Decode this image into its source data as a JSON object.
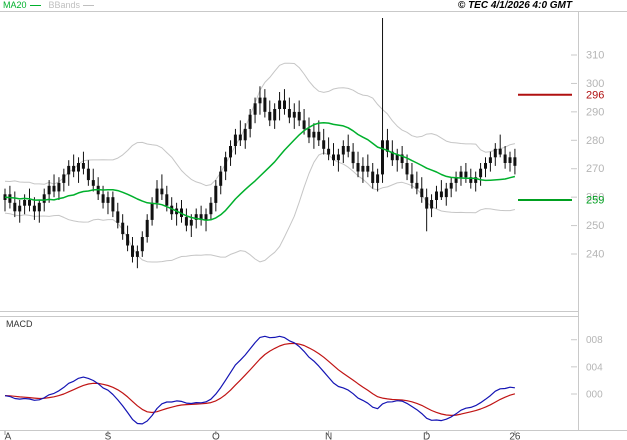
{
  "header": {
    "ma20_label": "MA20",
    "bbands_label": "BBands",
    "copyright": "© TEC 4/1/2026 4:0 GMT",
    "ma20_color": "#00b02c",
    "bbands_color": "#bfbfbf"
  },
  "chart_data": {
    "type": "candlestick",
    "title": "",
    "x_axis": [
      {
        "label": "A",
        "index": 0
      },
      {
        "label": "S",
        "index": 21
      },
      {
        "label": "O",
        "index": 43
      },
      {
        "label": "N",
        "index": 66
      },
      {
        "label": "D",
        "index": 86
      },
      {
        "label": "26",
        "index": 104
      }
    ],
    "y_ticks": [
      310,
      300,
      290,
      280,
      270,
      260,
      250,
      240
    ],
    "ylim": [
      220,
      325
    ],
    "grid": false,
    "candle_color": "#111111",
    "levels": [
      {
        "value": 296,
        "color": "#b01010"
      },
      {
        "value": 259,
        "color": "#00a020"
      }
    ],
    "overlays": [
      {
        "name": "MA20",
        "type": "sma",
        "period": 20,
        "color": "#00b02c"
      },
      {
        "name": "BBands",
        "type": "bollinger",
        "period": 20,
        "stdev": 2,
        "color": "#c6c6c6"
      }
    ],
    "indicator_leadin_closes": [
      261,
      258,
      263,
      256,
      260,
      264,
      257,
      262,
      259,
      265,
      256,
      261,
      258,
      264,
      257,
      260,
      263,
      256,
      259
    ],
    "candles_ohlc": [
      [
        259,
        263,
        255,
        261
      ],
      [
        261,
        264,
        256,
        258
      ],
      [
        258,
        262,
        253,
        255
      ],
      [
        255,
        259,
        251,
        257
      ],
      [
        257,
        261,
        254,
        259
      ],
      [
        259,
        263,
        255,
        257
      ],
      [
        257,
        260,
        252,
        255
      ],
      [
        255,
        259,
        251,
        258
      ],
      [
        258,
        263,
        255,
        261
      ],
      [
        261,
        266,
        258,
        264
      ],
      [
        264,
        268,
        260,
        262
      ],
      [
        262,
        267,
        259,
        265
      ],
      [
        265,
        270,
        262,
        268
      ],
      [
        268,
        273,
        264,
        271
      ],
      [
        271,
        275,
        267,
        269
      ],
      [
        269,
        274,
        265,
        272
      ],
      [
        272,
        276,
        268,
        270
      ],
      [
        270,
        273,
        264,
        266
      ],
      [
        266,
        270,
        262,
        264
      ],
      [
        264,
        267,
        259,
        261
      ],
      [
        261,
        264,
        256,
        258
      ],
      [
        258,
        262,
        254,
        260
      ],
      [
        260,
        262,
        253,
        255
      ],
      [
        255,
        258,
        249,
        251
      ],
      [
        251,
        254,
        245,
        247
      ],
      [
        247,
        250,
        241,
        243
      ],
      [
        243,
        246,
        237,
        239
      ],
      [
        239,
        243,
        235,
        241
      ],
      [
        241,
        248,
        239,
        246
      ],
      [
        246,
        254,
        244,
        252
      ],
      [
        252,
        260,
        250,
        258
      ],
      [
        258,
        266,
        256,
        263
      ],
      [
        263,
        268,
        259,
        261
      ],
      [
        261,
        264,
        255,
        257
      ],
      [
        257,
        260,
        252,
        254
      ],
      [
        254,
        258,
        250,
        256
      ],
      [
        256,
        259,
        251,
        253
      ],
      [
        253,
        256,
        248,
        250
      ],
      [
        250,
        254,
        246,
        252
      ],
      [
        252,
        256,
        249,
        254
      ],
      [
        254,
        257,
        250,
        252
      ],
      [
        252,
        256,
        248,
        254
      ],
      [
        254,
        260,
        252,
        258
      ],
      [
        258,
        266,
        255,
        264
      ],
      [
        264,
        271,
        261,
        269
      ],
      [
        269,
        276,
        266,
        274
      ],
      [
        274,
        280,
        271,
        278
      ],
      [
        278,
        284,
        275,
        282
      ],
      [
        282,
        287,
        278,
        280
      ],
      [
        280,
        286,
        277,
        284
      ],
      [
        284,
        291,
        281,
        289
      ],
      [
        289,
        295,
        286,
        293
      ],
      [
        293,
        299,
        289,
        295
      ],
      [
        295,
        298,
        288,
        290
      ],
      [
        290,
        294,
        285,
        287
      ],
      [
        287,
        293,
        284,
        291
      ],
      [
        291,
        297,
        287,
        294
      ],
      [
        294,
        298,
        289,
        291
      ],
      [
        291,
        295,
        286,
        288
      ],
      [
        288,
        293,
        284,
        290
      ],
      [
        290,
        294,
        285,
        287
      ],
      [
        287,
        291,
        282,
        284
      ],
      [
        284,
        288,
        279,
        281
      ],
      [
        281,
        286,
        277,
        283
      ],
      [
        283,
        287,
        278,
        280
      ],
      [
        280,
        284,
        275,
        277
      ],
      [
        277,
        281,
        273,
        275
      ],
      [
        275,
        279,
        271,
        273
      ],
      [
        273,
        277,
        269,
        275
      ],
      [
        275,
        280,
        272,
        278
      ],
      [
        278,
        282,
        274,
        276
      ],
      [
        276,
        279,
        270,
        272
      ],
      [
        272,
        276,
        267,
        269
      ],
      [
        269,
        274,
        265,
        271
      ],
      [
        271,
        275,
        267,
        269
      ],
      [
        269,
        272,
        263,
        265
      ],
      [
        265,
        270,
        262,
        268
      ],
      [
        268,
        323,
        265,
        280
      ],
      [
        280,
        284,
        274,
        276
      ],
      [
        276,
        280,
        271,
        273
      ],
      [
        273,
        277,
        269,
        275
      ],
      [
        275,
        278,
        270,
        272
      ],
      [
        272,
        275,
        266,
        268
      ],
      [
        268,
        272,
        263,
        265
      ],
      [
        265,
        269,
        261,
        263
      ],
      [
        263,
        267,
        258,
        260
      ],
      [
        260,
        263,
        248,
        256
      ],
      [
        256,
        261,
        253,
        259
      ],
      [
        259,
        264,
        256,
        262
      ],
      [
        262,
        266,
        259,
        260
      ],
      [
        260,
        265,
        257,
        263
      ],
      [
        263,
        267,
        260,
        265
      ],
      [
        265,
        269,
        262,
        267
      ],
      [
        267,
        271,
        264,
        269
      ],
      [
        269,
        272,
        265,
        267
      ],
      [
        267,
        270,
        263,
        265
      ],
      [
        265,
        269,
        262,
        267
      ],
      [
        267,
        272,
        264,
        270
      ],
      [
        270,
        274,
        267,
        272
      ],
      [
        272,
        276,
        269,
        274
      ],
      [
        274,
        279,
        271,
        277
      ],
      [
        277,
        282,
        274,
        275
      ],
      [
        275,
        278,
        270,
        272
      ],
      [
        272,
        276,
        269,
        274
      ],
      [
        274,
        277,
        268,
        271
      ]
    ],
    "macd": {
      "label": "MACD",
      "type": "macd",
      "fast": 12,
      "slow": 26,
      "signal": 9,
      "line_color": "#1414b4",
      "signal_color": "#c01414",
      "y_ticks": [
        {
          "label": "008",
          "value": 8
        },
        {
          "label": "004",
          "value": 4
        },
        {
          "label": "000",
          "value": 0
        }
      ]
    }
  }
}
